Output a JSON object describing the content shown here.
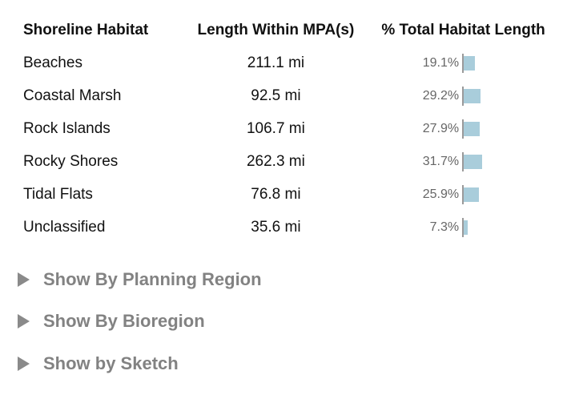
{
  "table": {
    "headers": {
      "habitat": "Shoreline Habitat",
      "length": "Length Within MPA(s)",
      "percent": "% Total Habitat Length"
    },
    "rows": [
      {
        "habitat": "Beaches",
        "length": "211.1 mi",
        "percent": "19.1%",
        "percent_value": 19.1
      },
      {
        "habitat": "Coastal Marsh",
        "length": "92.5 mi",
        "percent": "29.2%",
        "percent_value": 29.2
      },
      {
        "habitat": "Rock Islands",
        "length": "106.7 mi",
        "percent": "27.9%",
        "percent_value": 27.9
      },
      {
        "habitat": "Rocky Shores",
        "length": "262.3 mi",
        "percent": "31.7%",
        "percent_value": 31.7
      },
      {
        "habitat": "Tidal Flats",
        "length": "76.8 mi",
        "percent": "25.9%",
        "percent_value": 25.9
      },
      {
        "habitat": "Unclassified",
        "length": "35.6 mi",
        "percent": "7.3%",
        "percent_value": 7.3
      }
    ]
  },
  "toggles": [
    {
      "label": "Show By Planning Region",
      "expanded": false
    },
    {
      "label": "Show By Bioregion",
      "expanded": false
    },
    {
      "label": "Show by Sketch",
      "expanded": false
    }
  ],
  "colors": {
    "bar": "#a9cddb",
    "toggle_text": "#828282",
    "percent_text": "#666666"
  }
}
